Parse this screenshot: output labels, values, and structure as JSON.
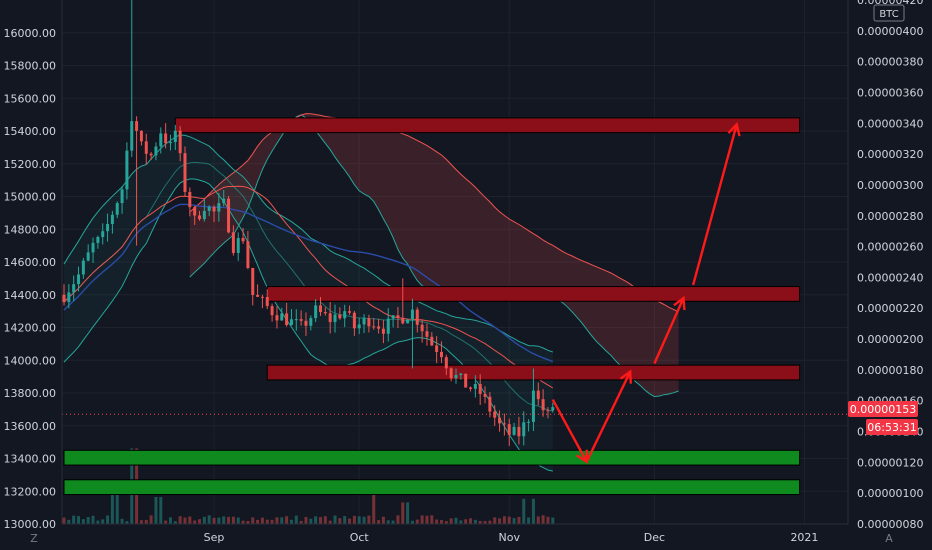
{
  "chart_data": {
    "type": "candlestick",
    "title": "",
    "left_axis": {
      "min": 13000,
      "max": 16200,
      "ticks": [
        "16000.00",
        "15800.00",
        "15600.00",
        "15400.00",
        "15200.00",
        "15000.00",
        "14800.00",
        "14600.00",
        "14400.00",
        "14200.00",
        "14000.00",
        "13800.00",
        "13600.00",
        "13400.00",
        "13200.00",
        "13000.00"
      ]
    },
    "right_axis": {
      "min": 8e-07,
      "max": 4.2e-06,
      "unit_label": "BTC",
      "ticks": [
        "0.00000420",
        "0.00000400",
        "0.00000380",
        "0.00000360",
        "0.00000340",
        "0.00000320",
        "0.00000300",
        "0.00000280",
        "0.00000260",
        "0.00000240",
        "0.00000220",
        "0.00000200",
        "0.00000180",
        "0.00000160",
        "0.00000140",
        "0.00000120",
        "0.00000100",
        "0.00000080"
      ]
    },
    "x_axis": {
      "labels": [
        {
          "text": "Sep",
          "day": 31
        },
        {
          "text": "Oct",
          "day": 61
        },
        {
          "text": "Nov",
          "day": 92
        },
        {
          "text": "Dec",
          "day": 122
        },
        {
          "text": "2021",
          "day": 153
        }
      ],
      "start_day": 0,
      "end_day": 162
    },
    "price_label": {
      "value": "0.00000153",
      "countdown": "06:53:31",
      "price": 13670
    },
    "resistance_zones": [
      {
        "price_low": 15390,
        "price_high": 15480,
        "day_start": 23,
        "day_end": 152
      },
      {
        "price_low": 14360,
        "price_high": 14450,
        "day_start": 42,
        "day_end": 152
      },
      {
        "price_low": 13880,
        "price_high": 13970,
        "day_start": 42,
        "day_end": 152
      }
    ],
    "support_zones": [
      {
        "price_low": 13360,
        "price_high": 13450,
        "day_start": 0,
        "day_end": 152
      },
      {
        "price_low": 13180,
        "price_high": 13270,
        "day_start": 0,
        "day_end": 152
      }
    ],
    "projection_arrows": [
      {
        "from": [
          101,
          13760
        ],
        "to": [
          108,
          13380
        ]
      },
      {
        "from": [
          108,
          13380
        ],
        "to": [
          117,
          13930
        ]
      },
      {
        "from": [
          122,
          13980
        ],
        "to": [
          128,
          14380
        ]
      },
      {
        "from": [
          130,
          14460
        ],
        "to": [
          139,
          15440
        ]
      }
    ],
    "colors": {
      "background": "#131722",
      "up": "#26a69a",
      "down": "#ef5350",
      "resistance": "#8b0f18",
      "support": "#0e8a1f",
      "arrow": "#ff1a1a",
      "cloud_red": "#ef5350",
      "cloud_green": "#26a69a",
      "slow_ma": "#2a4ca8",
      "price_tag": "#f23645"
    }
  },
  "footer": {
    "left_icon": "Z",
    "right_icon": "A"
  }
}
